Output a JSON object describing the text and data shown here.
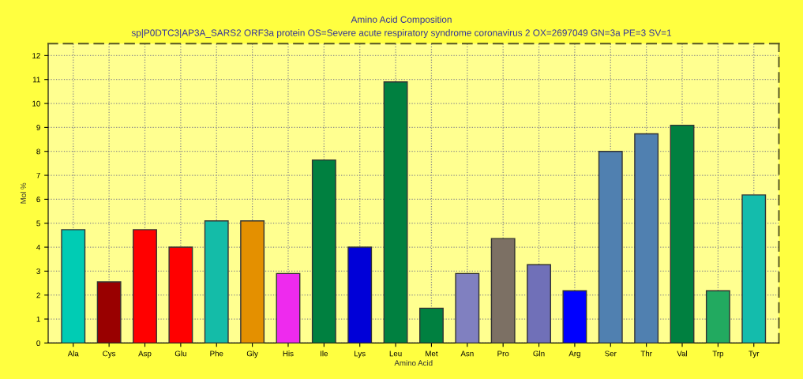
{
  "chart_data": {
    "type": "bar",
    "title": "Amino Acid Composition",
    "subtitle": "sp|P0DTC3|AP3A_SARS2 ORF3a protein OS=Severe acute respiratory syndrome coronavirus 2 OX=2697049 GN=3a PE=3 SV=1",
    "xlabel": "Amino Acid",
    "ylabel": "Mol %",
    "categories": [
      "Ala",
      "Cys",
      "Asp",
      "Glu",
      "Phe",
      "Gly",
      "His",
      "Ile",
      "Lys",
      "Leu",
      "Met",
      "Asn",
      "Pro",
      "Gln",
      "Arg",
      "Ser",
      "Thr",
      "Val",
      "Trp",
      "Tyr"
    ],
    "values": [
      4.73,
      2.55,
      4.73,
      4.0,
      5.1,
      5.1,
      2.9,
      7.64,
      4.0,
      10.9,
      1.45,
      2.9,
      4.36,
      3.27,
      2.18,
      8.0,
      8.73,
      9.09,
      2.18,
      6.18
    ],
    "colors": [
      "#00ccb4",
      "#990000",
      "#ff0000",
      "#ff0000",
      "#14bca8",
      "#e49000",
      "#ee2aee",
      "#008040",
      "#0000d8",
      "#008040",
      "#008040",
      "#8080c0",
      "#7c7064",
      "#7070b8",
      "#0000ff",
      "#5080b0",
      "#5080b0",
      "#008040",
      "#22aa60",
      "#14bcac"
    ],
    "ylim": [
      0,
      12.5
    ],
    "yticks": [
      0,
      1,
      2,
      3,
      4,
      5,
      6,
      7,
      8,
      9,
      10,
      11,
      12
    ],
    "grid": true,
    "legend": false
  }
}
